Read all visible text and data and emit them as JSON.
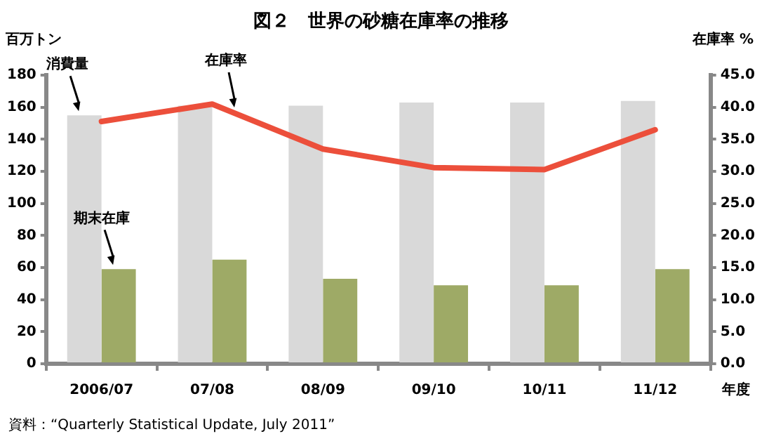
{
  "chart_data": {
    "type": "bar",
    "title": "図２　世界の砂糖在庫率の推移",
    "ylabel": "百万トン",
    "y2label": "在庫率 %",
    "xlabel": "年度",
    "annotations": [
      "資料：“Quarterly Statistical Update, July 2011”"
    ],
    "categories": [
      "2006/07",
      "07/08",
      "08/09",
      "09/10",
      "10/11",
      "11/12"
    ],
    "series": [
      {
        "name": "消費量",
        "color": "#d9d9d9",
        "values": [
          155,
          161,
          161,
          163,
          163,
          164
        ]
      },
      {
        "name": "期末在庫",
        "color": "#9eaa66",
        "values": [
          59,
          65,
          53,
          49,
          49,
          59
        ]
      },
      {
        "name": "在庫率",
        "type": "line",
        "axis": "y2",
        "color": "#ec4f3b",
        "values": [
          37.8,
          40.5,
          33.5,
          30.6,
          30.3,
          36.5
        ]
      }
    ],
    "ylim": [
      0,
      180
    ],
    "yticks": [
      0,
      20,
      40,
      60,
      80,
      100,
      120,
      140,
      160,
      180
    ],
    "y2lim": [
      0,
      45
    ],
    "y2ticks": [
      {
        "value": 0,
        "label": "0.0"
      },
      {
        "value": 5,
        "label": "5.0"
      },
      {
        "value": 10,
        "label": "10.0"
      },
      {
        "value": 15,
        "label": "15.0"
      },
      {
        "value": 20,
        "label": "20.0"
      },
      {
        "value": 25,
        "label": "25.0"
      },
      {
        "value": 30,
        "label": "30.0"
      },
      {
        "value": 35,
        "label": "35.0"
      },
      {
        "value": 40,
        "label": "40.0"
      },
      {
        "value": 45,
        "label": "45.0"
      }
    ],
    "marker": "none",
    "legend": false
  }
}
